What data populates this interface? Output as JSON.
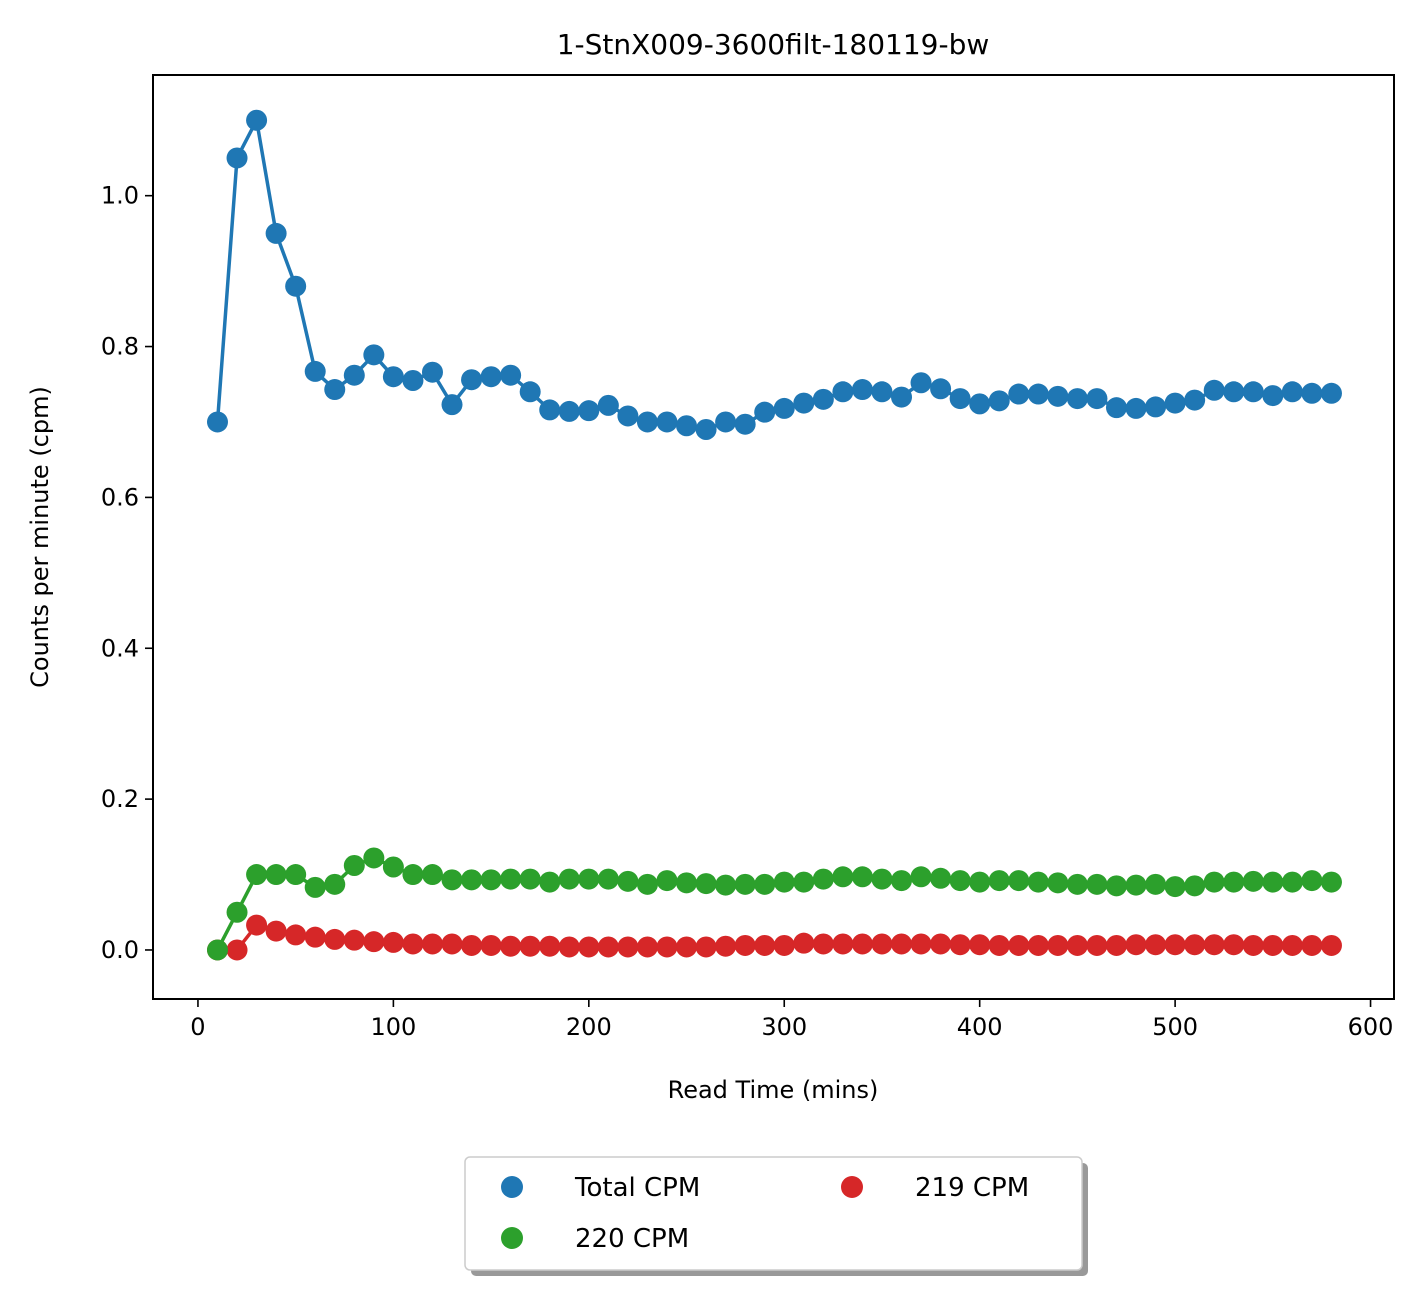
{
  "chart_data": {
    "type": "line",
    "title": "1-StnX009-3600filt-180119-bw",
    "xlabel": "Read Time (mins)",
    "ylabel": "Counts per minute (cpm)",
    "xlim": [
      -23,
      612
    ],
    "ylim": [
      -0.065,
      1.16
    ],
    "xticks": [
      0,
      100,
      200,
      300,
      400,
      500,
      600
    ],
    "xtick_labels": [
      "0",
      "100",
      "200",
      "300",
      "400",
      "500",
      "600"
    ],
    "yticks": [
      0.0,
      0.2,
      0.4,
      0.6,
      0.8,
      1.0
    ],
    "ytick_labels": [
      "0.0",
      "0.2",
      "0.4",
      "0.6",
      "0.8",
      "1.0"
    ],
    "grid": false,
    "legend_position": "below-center",
    "x": [
      10,
      20,
      30,
      40,
      50,
      60,
      70,
      80,
      90,
      100,
      110,
      120,
      130,
      140,
      150,
      160,
      170,
      180,
      190,
      200,
      210,
      220,
      230,
      240,
      250,
      260,
      270,
      280,
      290,
      300,
      310,
      320,
      330,
      340,
      350,
      360,
      370,
      380,
      390,
      400,
      410,
      420,
      430,
      440,
      450,
      460,
      470,
      480,
      490,
      500,
      510,
      520,
      530,
      540,
      550,
      560,
      570,
      580
    ],
    "series": [
      {
        "name": "Total CPM",
        "color": "#1f77b4",
        "values": [
          0.7,
          1.05,
          1.1,
          0.95,
          0.88,
          0.767,
          0.743,
          0.762,
          0.789,
          0.76,
          0.755,
          0.766,
          0.723,
          0.756,
          0.76,
          0.762,
          0.74,
          0.716,
          0.714,
          0.715,
          0.722,
          0.708,
          0.7,
          0.7,
          0.695,
          0.69,
          0.7,
          0.697,
          0.713,
          0.718,
          0.725,
          0.73,
          0.74,
          0.743,
          0.74,
          0.733,
          0.752,
          0.744,
          0.731,
          0.724,
          0.728,
          0.737,
          0.737,
          0.734,
          0.731,
          0.731,
          0.719,
          0.718,
          0.72,
          0.725,
          0.729,
          0.742,
          0.74,
          0.74,
          0.735,
          0.74,
          0.738,
          0.738
        ]
      },
      {
        "name": "220 CPM",
        "color": "#2ca02c",
        "values": [
          0.0,
          0.05,
          0.1,
          0.1,
          0.1,
          0.083,
          0.087,
          0.112,
          0.122,
          0.11,
          0.1,
          0.1,
          0.093,
          0.093,
          0.093,
          0.094,
          0.094,
          0.09,
          0.094,
          0.094,
          0.094,
          0.091,
          0.087,
          0.092,
          0.089,
          0.088,
          0.086,
          0.087,
          0.087,
          0.09,
          0.09,
          0.094,
          0.097,
          0.097,
          0.094,
          0.092,
          0.097,
          0.095,
          0.092,
          0.09,
          0.092,
          0.092,
          0.09,
          0.089,
          0.087,
          0.087,
          0.085,
          0.086,
          0.087,
          0.084,
          0.085,
          0.09,
          0.09,
          0.091,
          0.09,
          0.09,
          0.092,
          0.09
        ]
      },
      {
        "name": "219 CPM",
        "color": "#d62728",
        "values": [
          0.0,
          0.0,
          0.033,
          0.025,
          0.02,
          0.017,
          0.014,
          0.013,
          0.011,
          0.01,
          0.008,
          0.008,
          0.008,
          0.006,
          0.006,
          0.005,
          0.005,
          0.005,
          0.004,
          0.004,
          0.004,
          0.004,
          0.004,
          0.004,
          0.004,
          0.004,
          0.005,
          0.006,
          0.006,
          0.006,
          0.009,
          0.008,
          0.008,
          0.008,
          0.008,
          0.008,
          0.008,
          0.008,
          0.007,
          0.007,
          0.006,
          0.006,
          0.006,
          0.006,
          0.006,
          0.006,
          0.006,
          0.007,
          0.007,
          0.007,
          0.007,
          0.007,
          0.007,
          0.006,
          0.006,
          0.006,
          0.006,
          0.006
        ]
      }
    ]
  }
}
